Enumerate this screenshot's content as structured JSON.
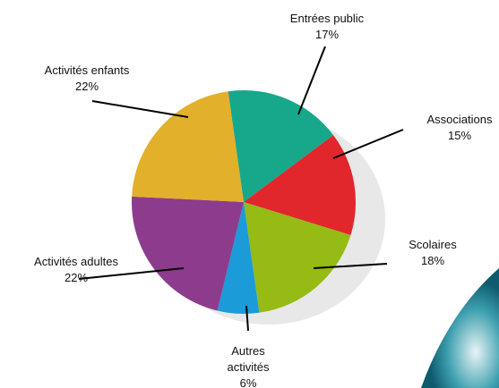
{
  "chart_data": {
    "type": "pie",
    "categories": [
      "Entrées public",
      "Associations",
      "Scolaires",
      "Autres activités",
      "Activités adultes",
      "Activités enfants"
    ],
    "values": [
      17,
      15,
      18,
      6,
      22,
      22
    ],
    "value_labels": [
      "17%",
      "15%",
      "18%",
      "6%",
      "22%",
      "22%"
    ],
    "colors": [
      "#17a88c",
      "#e1262c",
      "#95bb14",
      "#1b9bd7",
      "#8d3b8d",
      "#e2b02a"
    ]
  }
}
